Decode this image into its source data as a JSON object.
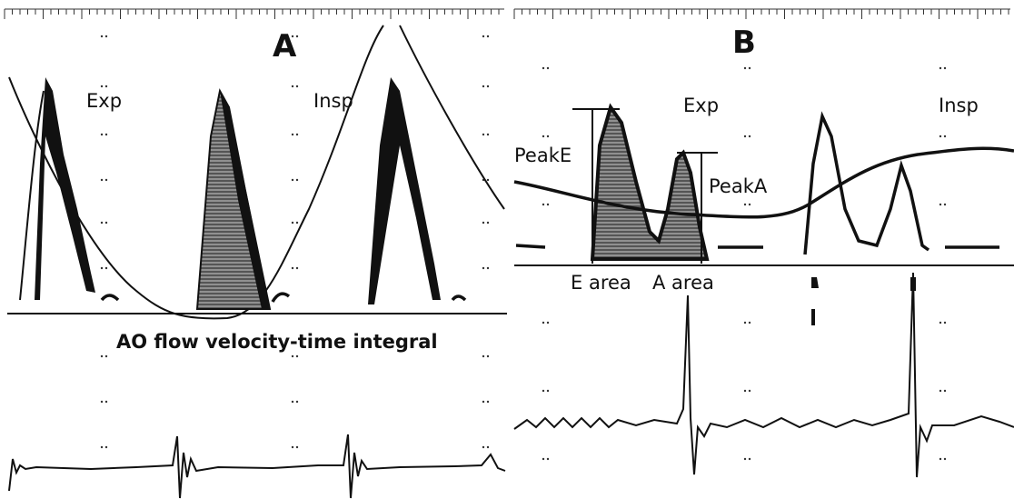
{
  "panels": [
    {
      "label": "A",
      "exp": "Exp",
      "insp": "Insp",
      "caption": "AO flow velocity-time integral"
    },
    {
      "label": "B",
      "exp": "Exp",
      "insp": "Insp",
      "peak_e": "PeakE",
      "peak_a": "PeakA",
      "e_area": "E area",
      "a_area": "A area"
    }
  ]
}
